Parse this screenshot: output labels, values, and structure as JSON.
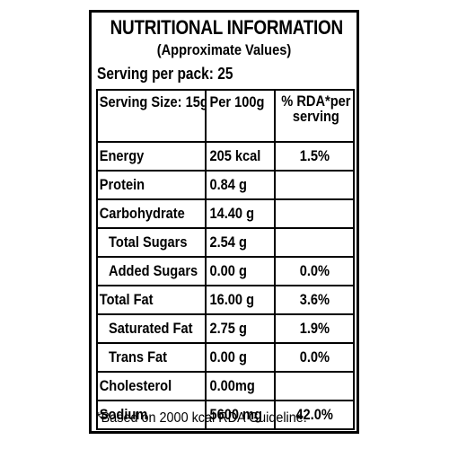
{
  "label": {
    "title": "NUTRITIONAL INFORMATION",
    "subtitle": "(Approximate Values)",
    "servings_per_pack": "Serving per pack: 25"
  },
  "table": {
    "headers": {
      "serving_size": "Serving Size: 15g",
      "per_100g": "Per 100g",
      "rda_line1": "% RDA*per",
      "rda_line2": "serving"
    },
    "rows": [
      {
        "name": "Energy",
        "per_100g": "205 kcal",
        "rda": "1.5%",
        "indent": false
      },
      {
        "name": "Protein",
        "per_100g": "0.84 g",
        "rda": "",
        "indent": false
      },
      {
        "name": "Carbohydrate",
        "per_100g": "14.40 g",
        "rda": "",
        "indent": false
      },
      {
        "name": "Total Sugars",
        "per_100g": "2.54 g",
        "rda": "",
        "indent": true
      },
      {
        "name": "Added Sugars",
        "per_100g": "0.00 g",
        "rda": "0.0%",
        "indent": true
      },
      {
        "name": "Total Fat",
        "per_100g": "16.00 g",
        "rda": "3.6%",
        "indent": false
      },
      {
        "name": "Saturated Fat",
        "per_100g": "2.75 g",
        "rda": "1.9%",
        "indent": true
      },
      {
        "name": "Trans Fat",
        "per_100g": "0.00 g",
        "rda": "0.0%",
        "indent": true
      },
      {
        "name": "Cholesterol",
        "per_100g": "0.00mg",
        "rda": "",
        "indent": false
      },
      {
        "name": "Sodium",
        "per_100g": "5600 mg",
        "rda": "42.0%",
        "indent": false
      }
    ]
  },
  "footnote": "*Based on 2000 kcal RDA Guideline."
}
